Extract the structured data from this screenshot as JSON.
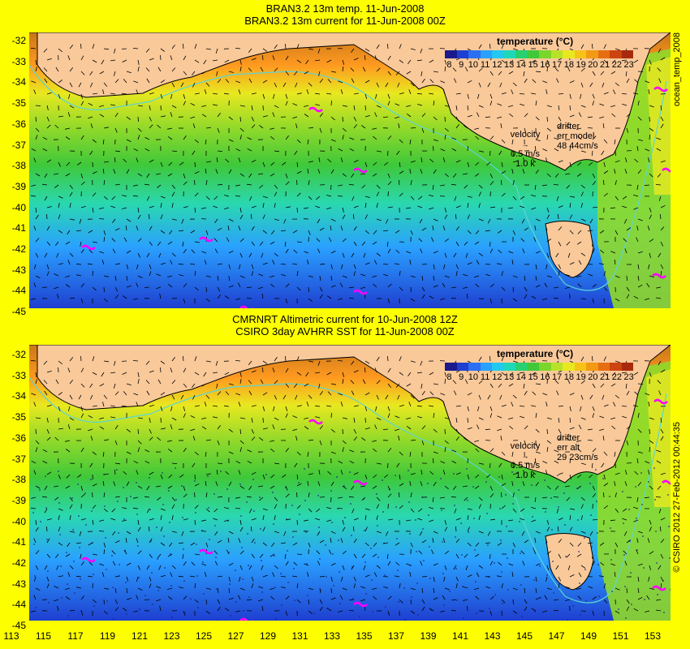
{
  "top": {
    "title1": "BRAN3.2 13m temp. 11-Jun-2008",
    "title2": "BRAN3.2 13m current for 11-Jun-2008 00Z",
    "side": "ocean_temp_2008",
    "legend_title": "temperature (°C)",
    "velocity": "velocity",
    "velocity_scale": "0.5 m/s",
    "velocity_kts": "1.0 k",
    "drifter": "drifter",
    "err_label": "err model",
    "err_value": "48 44cm/s"
  },
  "bottom": {
    "title1": "CMRNRT Altimetric current for 10-Jun-2008 12Z",
    "title2": "CSIRO 3day AVHRR SST for 11-Jun-2008 00Z",
    "side": "© CSIRO 2012   27-Feb-2012 00:44:35",
    "legend_title": "temperature (°C)",
    "velocity": "velocity",
    "velocity_scale": "0.5 m/s",
    "velocity_kts": "1.0 k",
    "drifter": "drifter",
    "err_label": "err alt",
    "err_value": "29 23cm/s"
  },
  "legend_ticks": [
    "8",
    "9",
    "10",
    "11",
    "12",
    "13",
    "14",
    "15",
    "16",
    "17",
    "18",
    "19",
    "20",
    "21",
    "22",
    "23"
  ],
  "legend_colors": [
    "#1a1a8c",
    "#1f3fd0",
    "#2b6ff2",
    "#2aa0ff",
    "#23c8f0",
    "#1fd8b8",
    "#28d070",
    "#3fc83a",
    "#7ad62a",
    "#b8e22a",
    "#e8e820",
    "#f5c318",
    "#f29a14",
    "#e66e12",
    "#cc4410",
    "#a82a0c"
  ],
  "y_ticks": [
    "-32",
    "-33",
    "-34",
    "-35",
    "-36",
    "-37",
    "-38",
    "-39",
    "-40",
    "-41",
    "-42",
    "-43",
    "-44",
    "-45"
  ],
  "x_ticks": [
    "113",
    "115",
    "117",
    "119",
    "121",
    "123",
    "125",
    "127",
    "129",
    "131",
    "133",
    "135",
    "137",
    "139",
    "141",
    "143",
    "145",
    "147",
    "149",
    "151",
    "153"
  ],
  "colors": {
    "land": "#f9c99a",
    "coast": "#000000",
    "shelf_line": "#5bd5d5",
    "drifter": "#ff00ff",
    "frame": "#fdff00"
  }
}
